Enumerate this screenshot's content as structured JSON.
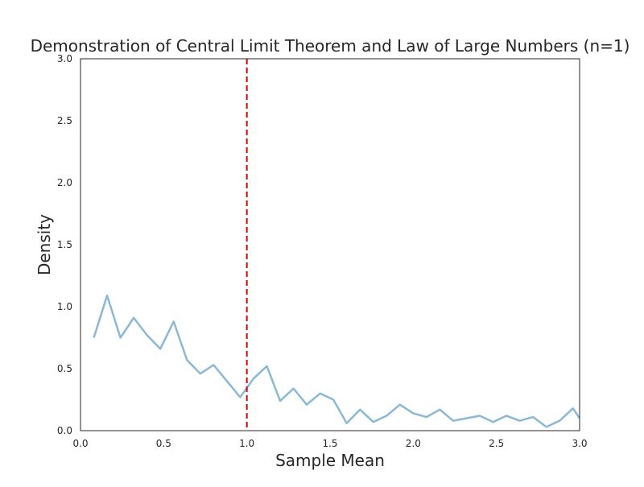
{
  "chart_data": {
    "type": "line",
    "title": "Demonstration of Central Limit Theorem and Law of Large Numbers (n=1)",
    "xlabel": "Sample Mean",
    "ylabel": "Density",
    "xlim": [
      0.0,
      3.0
    ],
    "ylim": [
      0.0,
      3.0
    ],
    "xticks": [
      0.0,
      0.5,
      1.0,
      1.5,
      2.0,
      2.5,
      3.0
    ],
    "xtick_labels": [
      "0.0",
      "0.5",
      "1.0",
      "1.5",
      "2.0",
      "2.5",
      "3.0"
    ],
    "yticks": [
      0.0,
      0.5,
      1.0,
      1.5,
      2.0,
      2.5,
      3.0
    ],
    "ytick_labels": [
      "0.0",
      "0.5",
      "1.0",
      "1.5",
      "2.0",
      "2.5",
      "3.0"
    ],
    "grid": false,
    "series": [
      {
        "color": "#8ab8d7",
        "x": [
          0.08,
          0.16,
          0.24,
          0.32,
          0.4,
          0.48,
          0.56,
          0.64,
          0.72,
          0.8,
          0.88,
          0.96,
          1.04,
          1.12,
          1.2,
          1.28,
          1.36,
          1.44,
          1.52,
          1.6,
          1.68,
          1.76,
          1.84,
          1.92,
          2.0,
          2.08,
          2.16,
          2.24,
          2.32,
          2.4,
          2.48,
          2.56,
          2.64,
          2.72,
          2.8,
          2.88,
          2.96,
          3.0
        ],
        "y": [
          0.75,
          1.09,
          0.75,
          0.91,
          0.77,
          0.66,
          0.88,
          0.57,
          0.46,
          0.53,
          0.4,
          0.27,
          0.42,
          0.52,
          0.24,
          0.34,
          0.21,
          0.3,
          0.25,
          0.06,
          0.17,
          0.07,
          0.12,
          0.21,
          0.14,
          0.11,
          0.17,
          0.08,
          0.1,
          0.12,
          0.07,
          0.12,
          0.08,
          0.11,
          0.03,
          0.08,
          0.18,
          0.1
        ]
      }
    ],
    "reference_line": {
      "orientation": "vertical",
      "x": 1.0,
      "color": "#e00000",
      "style": "dashed"
    }
  }
}
